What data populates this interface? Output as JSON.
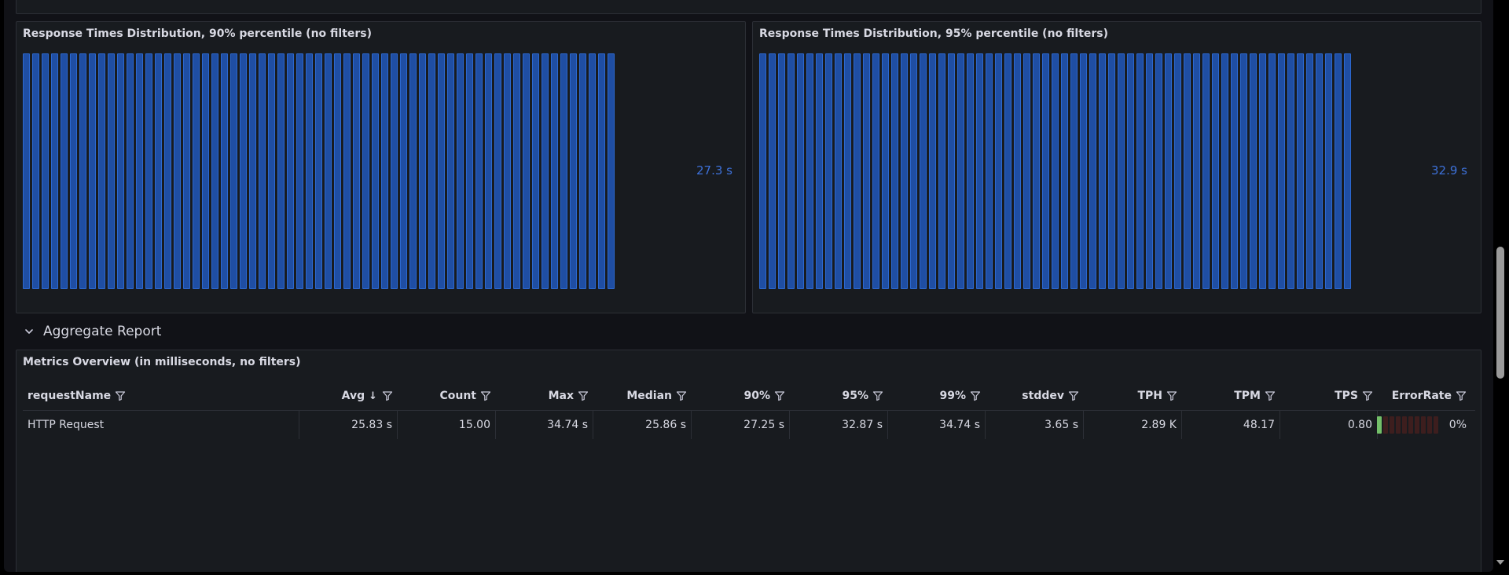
{
  "panels": {
    "p90": {
      "title": "Response Times Distribution, 90% percentile (no filters)",
      "value": "27.3 s",
      "bar_count": 63
    },
    "p95": {
      "title": "Response Times Distribution, 95% percentile (no filters)",
      "value": "32.9 s",
      "bar_count": 63
    }
  },
  "colors": {
    "bar": "#1f4ea3",
    "stat": "#3d71d9",
    "error_gauge_on": "#73bf69",
    "error_gauge_off": "#3d1e1e"
  },
  "row": {
    "title": "Aggregate Report",
    "icon": "chevron-down-icon"
  },
  "table_panel": {
    "title": "Metrics Overview (in milliseconds, no filters)"
  },
  "table": {
    "columns": [
      "requestName",
      "Avg",
      "Count",
      "Max",
      "Median",
      "90%",
      "95%",
      "99%",
      "stddev",
      "TPH",
      "TPM",
      "TPS",
      "ErrorRate"
    ],
    "sorted_column": "Avg",
    "sort_direction": "descending",
    "rows": [
      {
        "cells": [
          "HTTP Request",
          "25.83 s",
          "15.00",
          "34.74 s",
          "25.86 s",
          "27.25 s",
          "32.87 s",
          "34.74 s",
          "3.65 s",
          "2.89 K",
          "48.17",
          "0.80",
          "0%"
        ],
        "error_rate_fraction": 0.0
      }
    ]
  }
}
